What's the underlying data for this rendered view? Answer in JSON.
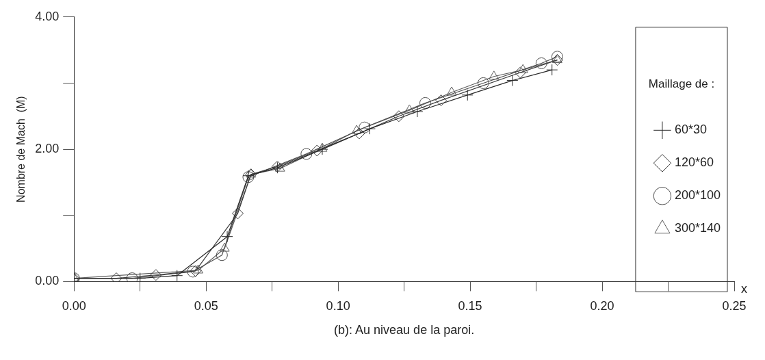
{
  "chart_data": {
    "type": "line",
    "xlabel": "x",
    "ylabel": "Nombre de Mach  (M)",
    "legend_title": "Maillage de :",
    "legend": "right",
    "grid": false,
    "line_style": "solid",
    "xlim": [
      0,
      0.25
    ],
    "ylim": [
      0,
      4
    ],
    "xticks": [
      {
        "value": 0,
        "label": "0.00"
      },
      {
        "value": 0.025,
        "label": null
      },
      {
        "value": 0.05,
        "label": "0.05"
      },
      {
        "value": 0.075,
        "label": null
      },
      {
        "value": 0.1,
        "label": "0.10"
      },
      {
        "value": 0.125,
        "label": null
      },
      {
        "value": 0.15,
        "label": "0.15"
      },
      {
        "value": 0.175,
        "label": null
      },
      {
        "value": 0.2,
        "label": "0.20"
      },
      {
        "value": 0.225,
        "label": null
      },
      {
        "value": 0.25,
        "label": "0.25"
      }
    ],
    "yticks": [
      {
        "value": 0,
        "label": "0.00"
      },
      {
        "value": 1,
        "label": null
      },
      {
        "value": 2,
        "label": "2.00"
      },
      {
        "value": 3,
        "label": null
      },
      {
        "value": 4,
        "label": "4.00"
      }
    ],
    "annotations": [
      "(b): Au niveau de la paroi."
    ],
    "series": [
      {
        "name": "60*30",
        "color": "#2a2a2a",
        "marker": "cross",
        "x": [
          0,
          0.025,
          0.039,
          0.058,
          0.066,
          0.077,
          0.094,
          0.112,
          0.13,
          0.149,
          0.166,
          0.181
        ],
        "values": [
          0.05,
          0.05,
          0.09,
          0.68,
          1.6,
          1.72,
          2.0,
          2.31,
          2.57,
          2.82,
          3.04,
          3.2
        ]
      },
      {
        "name": "120*60",
        "color": "#3c3c3c",
        "marker": "diamond",
        "x": [
          0,
          0.016,
          0.031,
          0.046,
          0.062,
          0.067,
          0.077,
          0.092,
          0.108,
          0.123,
          0.139,
          0.169,
          0.183
        ],
        "values": [
          0.05,
          0.05,
          0.1,
          0.16,
          1.03,
          1.62,
          1.74,
          1.98,
          2.24,
          2.5,
          2.74,
          3.16,
          3.35
        ]
      },
      {
        "name": "200*100",
        "color": "#4e4e4e",
        "marker": "circle",
        "x": [
          0,
          0.022,
          0.045,
          0.056,
          0.066,
          0.088,
          0.11,
          0.133,
          0.155,
          0.177,
          0.183
        ],
        "values": [
          0.05,
          0.05,
          0.15,
          0.4,
          1.58,
          1.93,
          2.33,
          2.7,
          3.0,
          3.3,
          3.4
        ]
      },
      {
        "name": "300*140",
        "color": "#606060",
        "marker": "triangle",
        "x": [
          0,
          0.047,
          0.057,
          0.067,
          0.078,
          0.094,
          0.107,
          0.127,
          0.143,
          0.159,
          0.17,
          0.183
        ],
        "values": [
          0.05,
          0.17,
          0.5,
          1.62,
          1.71,
          2.01,
          2.28,
          2.59,
          2.86,
          3.1,
          3.2,
          3.35
        ]
      }
    ]
  }
}
